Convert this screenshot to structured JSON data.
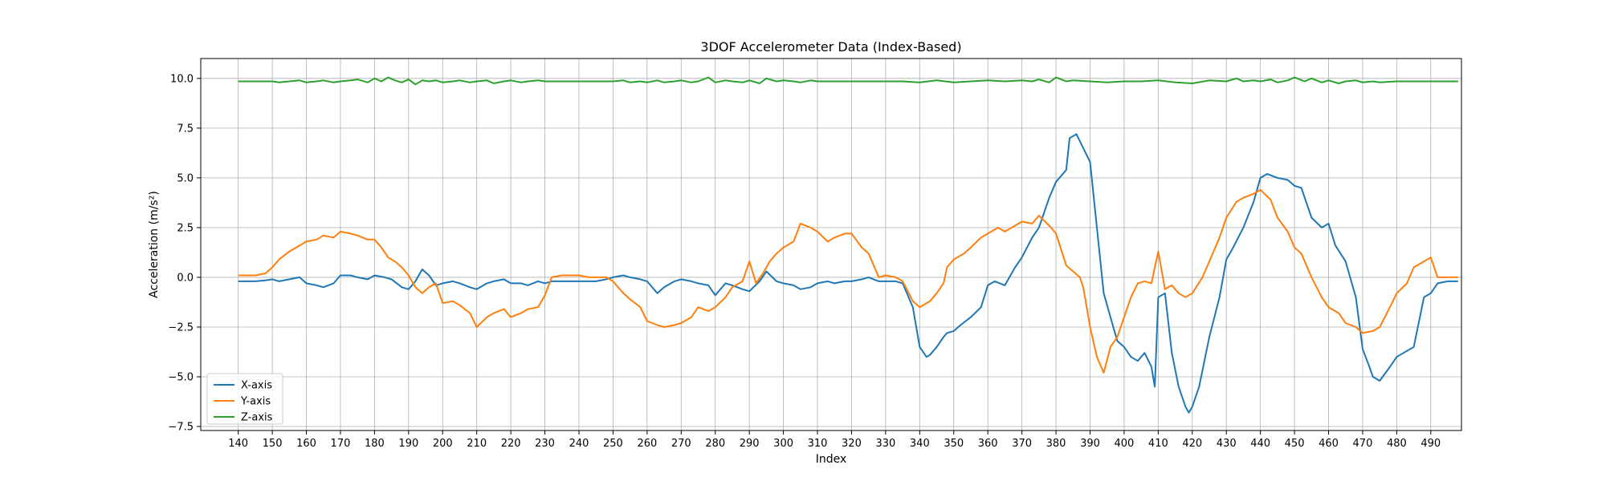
{
  "chart_data": {
    "type": "line",
    "title": "3DOF Accelerometer Data (Index-Based)",
    "xlabel": "Index",
    "ylabel": "Acceleration (m/s²)",
    "xlim": [
      129,
      499
    ],
    "ylim": [
      -7.7,
      11.0
    ],
    "xticks": [
      140,
      150,
      160,
      170,
      180,
      190,
      200,
      210,
      220,
      230,
      240,
      250,
      260,
      270,
      280,
      290,
      300,
      310,
      320,
      330,
      340,
      350,
      360,
      370,
      380,
      390,
      400,
      410,
      420,
      430,
      440,
      450,
      460,
      470,
      480,
      490
    ],
    "yticks": [
      -7.5,
      -5.0,
      -2.5,
      0.0,
      2.5,
      5.0,
      7.5,
      10.0
    ],
    "ytick_labels": [
      "−7.5",
      "−5.0",
      "−2.5",
      "0.0",
      "2.5",
      "5.0",
      "7.5",
      "10.0"
    ],
    "grid": true,
    "legend_position": "lower-left",
    "series": [
      {
        "name": "X-axis",
        "color": "#1f77b4",
        "x": [
          140,
          145,
          148,
          150,
          152,
          155,
          158,
          160,
          163,
          165,
          168,
          170,
          173,
          175,
          178,
          180,
          183,
          185,
          188,
          190,
          192,
          194,
          196,
          198,
          200,
          203,
          205,
          208,
          210,
          213,
          215,
          218,
          220,
          223,
          225,
          228,
          230,
          232,
          235,
          238,
          240,
          243,
          245,
          248,
          250,
          253,
          255,
          258,
          260,
          263,
          265,
          268,
          270,
          273,
          275,
          278,
          280,
          283,
          285,
          288,
          290,
          293,
          295,
          298,
          300,
          303,
          305,
          308,
          310,
          313,
          315,
          318,
          320,
          323,
          325,
          328,
          330,
          333,
          335,
          338,
          340,
          342,
          343,
          345,
          347,
          348,
          350,
          352,
          355,
          358,
          360,
          362,
          365,
          368,
          370,
          373,
          375,
          378,
          380,
          383,
          384,
          386,
          388,
          390,
          392,
          394,
          396,
          398,
          400,
          402,
          404,
          406,
          408,
          409,
          410,
          412,
          414,
          416,
          418,
          419,
          420,
          422,
          425,
          428,
          430,
          432,
          435,
          438,
          440,
          442,
          445,
          448,
          450,
          452,
          455,
          458,
          460,
          462,
          465,
          468,
          470,
          472,
          473,
          475,
          478,
          480,
          482,
          485,
          488,
          490,
          492,
          495,
          498
        ],
        "values": [
          -0.2,
          -0.2,
          -0.15,
          -0.1,
          -0.2,
          -0.1,
          0.0,
          -0.3,
          -0.4,
          -0.5,
          -0.3,
          0.1,
          0.1,
          0.0,
          -0.1,
          0.1,
          0.0,
          -0.1,
          -0.5,
          -0.6,
          -0.2,
          0.4,
          0.1,
          -0.4,
          -0.3,
          -0.2,
          -0.3,
          -0.5,
          -0.6,
          -0.3,
          -0.2,
          -0.1,
          -0.3,
          -0.3,
          -0.4,
          -0.2,
          -0.3,
          -0.2,
          -0.2,
          -0.2,
          -0.2,
          -0.2,
          -0.2,
          -0.1,
          0.0,
          0.1,
          0.0,
          -0.1,
          -0.2,
          -0.8,
          -0.5,
          -0.2,
          -0.1,
          -0.2,
          -0.3,
          -0.4,
          -0.9,
          -0.3,
          -0.4,
          -0.6,
          -0.7,
          -0.2,
          0.3,
          -0.2,
          -0.3,
          -0.4,
          -0.6,
          -0.5,
          -0.3,
          -0.2,
          -0.3,
          -0.2,
          -0.2,
          -0.1,
          0.0,
          -0.2,
          -0.2,
          -0.2,
          -0.3,
          -1.5,
          -3.5,
          -4.0,
          -3.9,
          -3.5,
          -3.0,
          -2.8,
          -2.7,
          -2.4,
          -2.0,
          -1.5,
          -0.4,
          -0.2,
          -0.4,
          0.5,
          1.0,
          2.0,
          2.5,
          4.0,
          4.8,
          5.4,
          7.0,
          7.2,
          6.5,
          5.8,
          2.5,
          -0.8,
          -2.0,
          -3.2,
          -3.5,
          -4.0,
          -4.2,
          -3.8,
          -4.5,
          -5.5,
          -1.0,
          -0.8,
          -3.8,
          -5.5,
          -6.5,
          -6.8,
          -6.5,
          -5.5,
          -3.0,
          -1.0,
          0.9,
          1.5,
          2.5,
          3.8,
          5.0,
          5.2,
          5.0,
          4.9,
          4.6,
          4.5,
          3.0,
          2.5,
          2.7,
          1.6,
          0.8,
          -1.0,
          -3.6,
          -4.5,
          -5.0,
          -5.2,
          -4.5,
          -4.0,
          -3.8,
          -3.5,
          -1.0,
          -0.8,
          -0.3,
          -0.2,
          -0.2
        ]
      },
      {
        "name": "Y-axis",
        "color": "#ff7f0e",
        "x": [
          140,
          145,
          148,
          150,
          152,
          155,
          158,
          160,
          163,
          165,
          168,
          170,
          173,
          175,
          178,
          180,
          182,
          184,
          186,
          188,
          190,
          192,
          194,
          196,
          198,
          200,
          203,
          205,
          208,
          210,
          213,
          215,
          218,
          220,
          223,
          225,
          228,
          230,
          232,
          235,
          238,
          240,
          243,
          245,
          248,
          250,
          253,
          255,
          258,
          260,
          263,
          265,
          268,
          270,
          273,
          275,
          278,
          280,
          283,
          285,
          288,
          290,
          292,
          294,
          296,
          298,
          300,
          303,
          305,
          308,
          310,
          313,
          315,
          318,
          320,
          323,
          325,
          328,
          330,
          333,
          335,
          338,
          340,
          343,
          345,
          347,
          348,
          350,
          353,
          355,
          358,
          360,
          363,
          365,
          368,
          370,
          373,
          375,
          378,
          380,
          383,
          385,
          387,
          388,
          390,
          392,
          394,
          396,
          398,
          400,
          402,
          404,
          406,
          408,
          409,
          410,
          412,
          414,
          416,
          418,
          420,
          423,
          425,
          428,
          430,
          433,
          435,
          438,
          440,
          443,
          445,
          448,
          450,
          452,
          455,
          458,
          460,
          463,
          465,
          468,
          470,
          473,
          475,
          478,
          480,
          483,
          485,
          488,
          490,
          492,
          495,
          498
        ],
        "values": [
          0.1,
          0.1,
          0.2,
          0.5,
          0.9,
          1.3,
          1.6,
          1.8,
          1.9,
          2.1,
          2.0,
          2.3,
          2.2,
          2.1,
          1.9,
          1.9,
          1.5,
          1.0,
          0.8,
          0.5,
          0.1,
          -0.5,
          -0.8,
          -0.5,
          -0.3,
          -1.3,
          -1.2,
          -1.4,
          -1.8,
          -2.5,
          -2.0,
          -1.8,
          -1.6,
          -2.0,
          -1.8,
          -1.6,
          -1.5,
          -0.9,
          0.0,
          0.1,
          0.1,
          0.1,
          0.0,
          0.0,
          0.0,
          -0.2,
          -0.8,
          -1.1,
          -1.5,
          -2.2,
          -2.4,
          -2.5,
          -2.4,
          -2.3,
          -2.0,
          -1.5,
          -1.7,
          -1.5,
          -1.0,
          -0.5,
          -0.2,
          0.8,
          -0.3,
          0.2,
          0.8,
          1.2,
          1.5,
          1.8,
          2.7,
          2.5,
          2.3,
          1.8,
          2.0,
          2.2,
          2.2,
          1.5,
          1.2,
          0.0,
          0.1,
          0.0,
          -0.2,
          -1.2,
          -1.5,
          -1.2,
          -0.8,
          -0.3,
          0.5,
          0.9,
          1.2,
          1.5,
          2.0,
          2.2,
          2.5,
          2.3,
          2.6,
          2.8,
          2.7,
          3.1,
          2.6,
          2.2,
          0.6,
          0.3,
          0.0,
          -0.5,
          -2.5,
          -4.0,
          -4.8,
          -3.5,
          -3.0,
          -2.0,
          -1.0,
          -0.3,
          -0.2,
          -0.3,
          0.5,
          1.3,
          -0.6,
          -0.4,
          -0.8,
          -1.0,
          -0.8,
          0.0,
          0.8,
          2.0,
          3.0,
          3.8,
          4.0,
          4.2,
          4.4,
          3.9,
          3.0,
          2.3,
          1.5,
          1.2,
          0.0,
          -1.0,
          -1.5,
          -1.8,
          -2.3,
          -2.5,
          -2.8,
          -2.7,
          -2.5,
          -1.5,
          -0.8,
          -0.3,
          0.5,
          0.8,
          1.0,
          0.0,
          0.0,
          0.0
        ]
      },
      {
        "name": "Z-axis",
        "color": "#2ca02c",
        "x": [
          140,
          145,
          150,
          152,
          155,
          158,
          160,
          163,
          165,
          168,
          170,
          173,
          175,
          178,
          180,
          182,
          184,
          186,
          188,
          190,
          192,
          194,
          196,
          198,
          200,
          203,
          205,
          208,
          210,
          213,
          215,
          218,
          220,
          223,
          225,
          228,
          230,
          235,
          240,
          245,
          250,
          253,
          255,
          258,
          260,
          263,
          265,
          268,
          270,
          273,
          275,
          278,
          280,
          283,
          285,
          288,
          290,
          293,
          295,
          298,
          300,
          303,
          305,
          308,
          310,
          315,
          320,
          325,
          330,
          335,
          340,
          345,
          350,
          355,
          360,
          365,
          370,
          373,
          375,
          378,
          380,
          383,
          385,
          390,
          395,
          400,
          405,
          410,
          415,
          420,
          425,
          430,
          433,
          435,
          438,
          440,
          443,
          445,
          448,
          450,
          453,
          455,
          458,
          460,
          463,
          465,
          468,
          470,
          473,
          475,
          480,
          485,
          490,
          495,
          498
        ],
        "values": [
          9.85,
          9.85,
          9.85,
          9.8,
          9.85,
          9.9,
          9.8,
          9.85,
          9.9,
          9.8,
          9.85,
          9.9,
          9.95,
          9.8,
          10.0,
          9.85,
          10.05,
          9.9,
          9.8,
          9.95,
          9.7,
          9.9,
          9.85,
          9.9,
          9.8,
          9.85,
          9.9,
          9.8,
          9.85,
          9.9,
          9.75,
          9.85,
          9.9,
          9.8,
          9.85,
          9.9,
          9.85,
          9.85,
          9.85,
          9.85,
          9.85,
          9.9,
          9.8,
          9.85,
          9.8,
          9.9,
          9.8,
          9.85,
          9.9,
          9.8,
          9.85,
          10.05,
          9.8,
          9.9,
          9.85,
          9.8,
          9.9,
          9.75,
          10.0,
          9.85,
          9.9,
          9.85,
          9.8,
          9.9,
          9.85,
          9.85,
          9.85,
          9.85,
          9.85,
          9.85,
          9.8,
          9.9,
          9.8,
          9.85,
          9.9,
          9.85,
          9.9,
          9.85,
          9.95,
          9.8,
          10.05,
          9.85,
          9.9,
          9.85,
          9.8,
          9.85,
          9.85,
          9.9,
          9.8,
          9.75,
          9.9,
          9.85,
          10.0,
          9.85,
          9.9,
          9.85,
          9.95,
          9.8,
          9.9,
          10.05,
          9.85,
          10.0,
          9.8,
          9.9,
          9.75,
          9.85,
          9.9,
          9.8,
          9.85,
          9.8,
          9.85,
          9.85,
          9.85,
          9.85,
          9.85
        ]
      }
    ]
  }
}
